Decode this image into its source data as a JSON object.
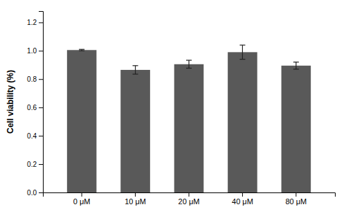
{
  "chart_data": {
    "type": "bar",
    "categories": [
      "0 μM",
      "10 μM",
      "20 μM",
      "40 μM",
      "80 μM"
    ],
    "values": [
      1.005,
      0.865,
      0.905,
      0.99,
      0.895
    ],
    "errors": [
      0.005,
      0.03,
      0.028,
      0.05,
      0.025
    ],
    "color": "#595959",
    "ylabel": "Cell viability (%)",
    "ylim": [
      0.0,
      1.28
    ],
    "yticks": [
      {
        "value": 0.0,
        "label": "0.0"
      },
      0.2,
      0.4,
      0.6,
      0.8,
      {
        "value": 1.0,
        "label": "1.0"
      },
      1.2
    ],
    "grid": false
  }
}
